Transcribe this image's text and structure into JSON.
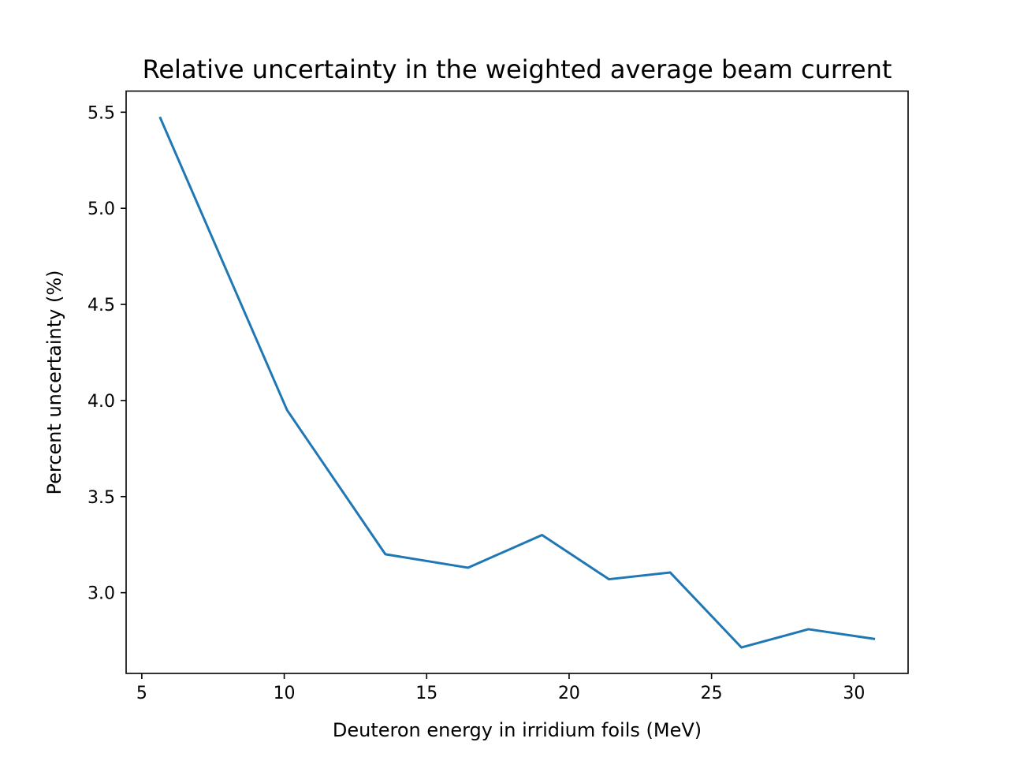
{
  "chart_data": {
    "type": "line",
    "title": "Relative uncertainty in the weighted average beam current",
    "xlabel": "Deuteron energy in irridium foils (MeV)",
    "ylabel": "Percent uncertainty (%)",
    "xlim": [
      4.45,
      31.9
    ],
    "ylim": [
      2.58,
      5.61
    ],
    "xticks": [
      5,
      10,
      15,
      20,
      25,
      30
    ],
    "xtick_labels": [
      "5",
      "10",
      "15",
      "20",
      "25",
      "30"
    ],
    "yticks": [
      3.0,
      3.5,
      4.0,
      4.5,
      5.0,
      5.5
    ],
    "ytick_labels": [
      "3.0",
      "3.5",
      "4.0",
      "4.5",
      "5.0",
      "5.5"
    ],
    "grid": false,
    "legend": false,
    "series": [
      {
        "color": "#1f77b4",
        "x": [
          5.65,
          10.1,
          13.55,
          16.45,
          19.05,
          21.4,
          23.55,
          26.05,
          28.4,
          30.7
        ],
        "y": [
          5.47,
          3.95,
          3.2,
          3.13,
          3.3,
          3.07,
          3.105,
          2.715,
          2.81,
          2.76
        ]
      }
    ]
  }
}
